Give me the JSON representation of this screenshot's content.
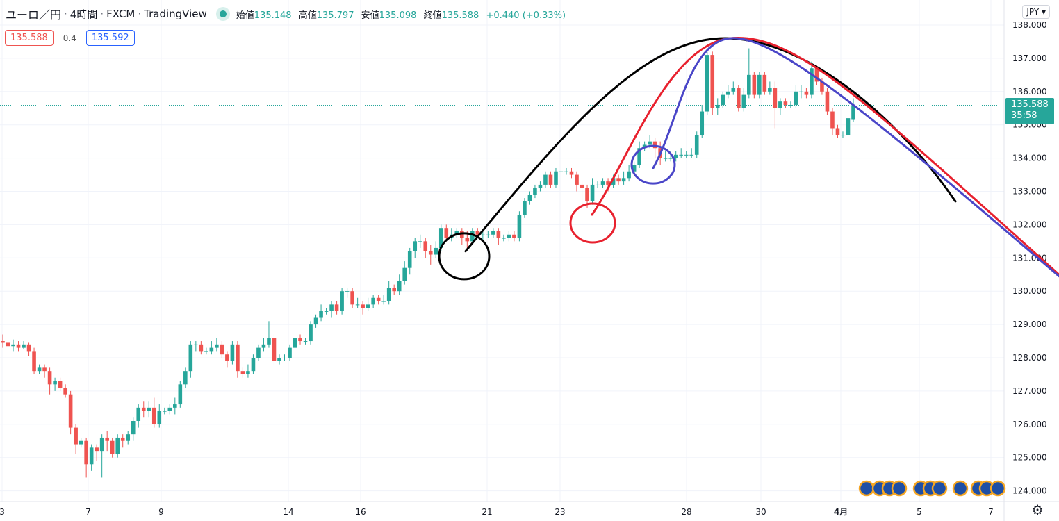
{
  "header": {
    "symbol": "ユーロ／円",
    "interval": "4時間",
    "broker": "FXCM",
    "platform": "TradingView",
    "open_label": "始値",
    "open": "135.148",
    "high_label": "高値",
    "high": "135.797",
    "low_label": "安値",
    "low": "135.098",
    "close_label": "終値",
    "close": "135.588",
    "change": "+0.440 (+0.33%)"
  },
  "quote": {
    "bid": "135.588",
    "spread": "0.4",
    "ask": "135.592"
  },
  "currency_button": "JPY ▾",
  "price_tag": {
    "price": "135.588",
    "countdown": "35:58"
  },
  "settings_icon": "gear-icon",
  "colors": {
    "up": "#26a69a",
    "down": "#ef5350",
    "black": "#000000",
    "red": "#e8212e",
    "blue": "#4a46c8"
  },
  "chart_data": {
    "type": "candlestick",
    "title": "ユーロ／円 · 4時間 · FXCM",
    "ylim": [
      124.0,
      138.0
    ],
    "y_ticks": [
      "124.000",
      "125.000",
      "126.000",
      "127.000",
      "128.000",
      "129.000",
      "130.000",
      "131.000",
      "132.000",
      "133.000",
      "134.000",
      "135.000",
      "136.000",
      "137.000",
      "138.000"
    ],
    "x_ticks": [
      "3",
      "7",
      "9",
      "14",
      "16",
      "21",
      "23",
      "28",
      "30",
      "4月",
      "5",
      "7"
    ],
    "grid": true,
    "last_price": 135.588,
    "candles": [
      [
        128.5,
        128.45,
        128.7,
        128.3
      ],
      [
        128.45,
        128.35,
        128.6,
        128.25
      ],
      [
        128.35,
        128.4,
        128.55,
        128.2
      ],
      [
        128.4,
        128.3,
        128.5,
        128.2
      ],
      [
        128.3,
        128.4,
        128.5,
        128.25
      ],
      [
        128.4,
        128.2,
        128.45,
        128.05
      ],
      [
        128.2,
        127.6,
        128.3,
        127.5
      ],
      [
        127.6,
        127.7,
        127.8,
        127.5
      ],
      [
        127.7,
        127.6,
        127.8,
        127.4
      ],
      [
        127.6,
        127.2,
        127.7,
        126.9
      ],
      [
        127.2,
        127.3,
        127.4,
        127.0
      ],
      [
        127.3,
        127.1,
        127.4,
        127.0
      ],
      [
        127.1,
        126.9,
        127.2,
        126.8
      ],
      [
        126.9,
        125.9,
        127.0,
        125.7
      ],
      [
        125.9,
        125.4,
        126.0,
        125.1
      ],
      [
        125.4,
        125.5,
        125.6,
        125.3
      ],
      [
        125.5,
        124.8,
        125.6,
        124.4
      ],
      [
        124.8,
        125.3,
        125.4,
        124.6
      ],
      [
        125.3,
        125.2,
        125.4,
        124.9
      ],
      [
        125.2,
        125.6,
        125.7,
        124.4
      ],
      [
        125.6,
        125.5,
        125.8,
        125.2
      ],
      [
        125.5,
        125.1,
        125.6,
        125.0
      ],
      [
        125.1,
        125.6,
        125.7,
        125.0
      ],
      [
        125.6,
        125.5,
        125.7,
        125.3
      ],
      [
        125.5,
        125.7,
        125.8,
        125.4
      ],
      [
        125.7,
        126.1,
        126.2,
        125.5
      ],
      [
        126.1,
        126.5,
        126.6,
        125.9
      ],
      [
        126.5,
        126.4,
        126.7,
        126.2
      ],
      [
        126.4,
        126.5,
        126.7,
        126.2
      ],
      [
        126.5,
        126.0,
        126.8,
        125.9
      ],
      [
        126.0,
        126.4,
        126.6,
        125.9
      ],
      [
        126.4,
        126.4,
        126.5,
        126.3
      ],
      [
        126.4,
        126.5,
        126.6,
        126.3
      ],
      [
        126.5,
        126.6,
        126.8,
        126.3
      ],
      [
        126.6,
        127.2,
        127.3,
        126.5
      ],
      [
        127.2,
        127.6,
        127.7,
        127.1
      ],
      [
        127.6,
        128.4,
        128.5,
        127.4
      ],
      [
        128.4,
        128.4,
        128.5,
        128.2
      ],
      [
        128.4,
        128.2,
        128.5,
        128.1
      ],
      [
        128.2,
        128.2,
        128.3,
        128.1
      ],
      [
        128.2,
        128.3,
        128.5,
        128.1
      ],
      [
        128.3,
        128.4,
        128.6,
        128.2
      ],
      [
        128.4,
        128.1,
        128.5,
        128.0
      ],
      [
        128.1,
        127.9,
        128.2,
        127.7
      ],
      [
        127.9,
        128.4,
        128.5,
        127.8
      ],
      [
        128.4,
        127.6,
        128.5,
        127.4
      ],
      [
        127.6,
        127.5,
        127.7,
        127.4
      ],
      [
        127.5,
        127.6,
        127.8,
        127.4
      ],
      [
        127.6,
        128.0,
        128.1,
        127.5
      ],
      [
        128.0,
        128.3,
        128.4,
        127.9
      ],
      [
        128.3,
        128.4,
        128.6,
        128.2
      ],
      [
        128.4,
        128.6,
        129.1,
        128.3
      ],
      [
        128.6,
        127.9,
        128.7,
        127.8
      ],
      [
        127.9,
        128.0,
        128.1,
        127.8
      ],
      [
        128.0,
        128.0,
        128.1,
        127.9
      ],
      [
        128.0,
        128.3,
        128.4,
        127.9
      ],
      [
        128.3,
        128.6,
        128.7,
        128.2
      ],
      [
        128.6,
        128.5,
        128.7,
        128.4
      ],
      [
        128.5,
        128.5,
        128.6,
        128.4
      ],
      [
        128.5,
        129.0,
        129.1,
        128.4
      ],
      [
        129.0,
        129.2,
        129.3,
        128.9
      ],
      [
        129.2,
        129.4,
        129.6,
        129.1
      ],
      [
        129.4,
        129.4,
        129.5,
        129.3
      ],
      [
        129.4,
        129.6,
        129.7,
        129.2
      ],
      [
        129.6,
        129.4,
        129.7,
        129.3
      ],
      [
        129.4,
        130.0,
        130.1,
        129.3
      ],
      [
        130.0,
        130.0,
        130.1,
        129.8
      ],
      [
        130.0,
        129.6,
        130.1,
        129.5
      ],
      [
        129.6,
        129.6,
        129.8,
        129.5
      ],
      [
        129.6,
        129.5,
        129.7,
        129.3
      ],
      [
        129.5,
        129.6,
        129.8,
        129.4
      ],
      [
        129.6,
        129.8,
        129.9,
        129.5
      ],
      [
        129.8,
        129.7,
        129.9,
        129.6
      ],
      [
        129.7,
        129.7,
        129.9,
        129.6
      ],
      [
        129.7,
        130.1,
        130.3,
        129.6
      ],
      [
        130.1,
        130.0,
        130.2,
        129.9
      ],
      [
        130.0,
        130.3,
        130.5,
        129.9
      ],
      [
        130.3,
        130.7,
        130.9,
        130.2
      ],
      [
        130.7,
        131.2,
        131.3,
        130.5
      ],
      [
        131.2,
        131.5,
        131.6,
        131.0
      ],
      [
        131.5,
        131.5,
        131.7,
        131.3
      ],
      [
        131.5,
        131.2,
        131.6,
        131.0
      ],
      [
        131.2,
        131.1,
        131.4,
        130.8
      ],
      [
        131.1,
        131.3,
        131.5,
        131.0
      ],
      [
        131.3,
        131.9,
        132.0,
        131.2
      ],
      [
        131.9,
        131.6,
        132.0,
        131.5
      ],
      [
        131.6,
        131.7,
        131.9,
        131.5
      ],
      [
        131.7,
        131.8,
        131.9,
        131.6
      ],
      [
        131.8,
        131.6,
        131.9,
        131.4
      ],
      [
        131.6,
        131.5,
        131.8,
        131.3
      ],
      [
        131.5,
        131.8,
        131.9,
        131.4
      ],
      [
        131.8,
        131.7,
        131.9,
        131.6
      ],
      [
        131.7,
        131.7,
        131.8,
        131.5
      ],
      [
        131.7,
        131.7,
        131.8,
        131.6
      ],
      [
        131.7,
        131.8,
        131.9,
        131.6
      ],
      [
        131.8,
        131.6,
        131.9,
        131.4
      ],
      [
        131.6,
        131.6,
        131.7,
        131.5
      ],
      [
        131.6,
        131.7,
        131.8,
        131.5
      ],
      [
        131.7,
        131.6,
        131.8,
        131.5
      ],
      [
        131.6,
        132.3,
        132.4,
        131.5
      ],
      [
        132.3,
        132.7,
        132.8,
        132.2
      ],
      [
        132.7,
        132.9,
        133.0,
        132.6
      ],
      [
        132.9,
        133.1,
        133.2,
        132.8
      ],
      [
        133.1,
        133.2,
        133.3,
        133.0
      ],
      [
        133.2,
        133.5,
        133.6,
        133.1
      ],
      [
        133.5,
        133.2,
        133.6,
        133.1
      ],
      [
        133.2,
        133.6,
        133.7,
        133.1
      ],
      [
        133.6,
        133.6,
        134.0,
        133.5
      ],
      [
        133.6,
        133.6,
        133.7,
        133.5
      ],
      [
        133.6,
        133.5,
        133.7,
        133.4
      ],
      [
        133.5,
        133.2,
        133.6,
        133.0
      ],
      [
        133.2,
        133.1,
        133.3,
        132.5
      ],
      [
        133.1,
        132.7,
        133.2,
        132.5
      ],
      [
        132.7,
        133.2,
        133.4,
        132.6
      ],
      [
        133.2,
        133.2,
        133.3,
        133.1
      ],
      [
        133.2,
        133.3,
        133.4,
        133.1
      ],
      [
        133.3,
        133.2,
        133.4,
        133.0
      ],
      [
        133.2,
        133.4,
        133.5,
        133.1
      ],
      [
        133.4,
        133.3,
        133.5,
        133.2
      ],
      [
        133.3,
        133.4,
        133.6,
        133.2
      ],
      [
        133.4,
        133.6,
        133.8,
        133.3
      ],
      [
        133.6,
        133.8,
        133.9,
        133.5
      ],
      [
        133.8,
        134.3,
        134.5,
        133.7
      ],
      [
        134.3,
        134.4,
        134.5,
        134.2
      ],
      [
        134.4,
        134.5,
        134.7,
        134.3
      ],
      [
        134.5,
        134.3,
        134.6,
        134.0
      ],
      [
        134.3,
        134.0,
        134.5,
        133.8
      ],
      [
        134.0,
        134.0,
        134.2,
        133.9
      ],
      [
        134.0,
        134.0,
        134.2,
        133.9
      ],
      [
        134.0,
        134.1,
        134.2,
        133.9
      ],
      [
        134.1,
        134.1,
        134.3,
        134.0
      ],
      [
        134.1,
        134.1,
        134.2,
        134.0
      ],
      [
        134.1,
        134.1,
        134.3,
        134.0
      ],
      [
        134.1,
        134.7,
        134.8,
        134.0
      ],
      [
        134.7,
        135.4,
        135.6,
        134.6
      ],
      [
        135.4,
        137.1,
        137.2,
        135.3
      ],
      [
        137.1,
        135.5,
        137.2,
        135.3
      ],
      [
        135.5,
        135.6,
        135.8,
        135.3
      ],
      [
        135.6,
        135.9,
        136.0,
        135.5
      ],
      [
        135.9,
        136.0,
        136.2,
        135.8
      ],
      [
        136.0,
        136.1,
        136.3,
        135.9
      ],
      [
        136.1,
        135.5,
        136.2,
        135.4
      ],
      [
        135.5,
        135.9,
        136.1,
        135.4
      ],
      [
        135.9,
        136.5,
        137.3,
        135.8
      ],
      [
        136.5,
        135.9,
        136.6,
        135.8
      ],
      [
        135.9,
        136.5,
        136.6,
        135.8
      ],
      [
        136.5,
        136.0,
        136.6,
        135.9
      ],
      [
        136.0,
        136.1,
        136.3,
        135.9
      ],
      [
        136.1,
        135.5,
        136.3,
        134.9
      ],
      [
        135.5,
        135.7,
        135.8,
        135.3
      ],
      [
        135.7,
        135.6,
        135.8,
        135.5
      ],
      [
        135.6,
        135.6,
        135.7,
        135.5
      ],
      [
        135.6,
        136.0,
        136.2,
        135.5
      ],
      [
        136.0,
        136.0,
        136.2,
        135.8
      ],
      [
        136.0,
        135.9,
        136.1,
        135.8
      ],
      [
        135.9,
        136.7,
        136.9,
        135.8
      ],
      [
        136.7,
        136.3,
        136.8,
        136.2
      ],
      [
        136.3,
        136.0,
        136.4,
        135.9
      ],
      [
        136.0,
        135.4,
        136.1,
        135.3
      ],
      [
        135.4,
        134.9,
        135.5,
        134.7
      ],
      [
        134.9,
        134.7,
        135.0,
        134.6
      ],
      [
        134.7,
        134.7,
        134.8,
        134.6
      ],
      [
        134.7,
        135.2,
        135.3,
        134.6
      ],
      [
        135.15,
        135.59,
        135.797,
        135.098
      ]
    ],
    "drawings": [
      {
        "type": "circle",
        "color": "black",
        "center_price": 131.05,
        "radius_price": 0.7
      },
      {
        "type": "circle",
        "color": "red",
        "center_price": 132.05,
        "radius_price": 0.55
      },
      {
        "type": "circle",
        "color": "blue",
        "center_price": 133.8,
        "radius_price": 0.52
      },
      {
        "type": "curve",
        "color": "black",
        "points": [
          [
            131.2,
            "start"
          ],
          [
            137.6,
            "peak"
          ],
          [
            132.7,
            "end"
          ]
        ]
      },
      {
        "type": "curve",
        "color": "red",
        "points": [
          [
            132.3,
            "start"
          ],
          [
            137.6,
            "peak"
          ],
          [
            130.5,
            "end"
          ]
        ]
      },
      {
        "type": "curve",
        "color": "blue",
        "points": [
          [
            133.7,
            "start"
          ],
          [
            137.6,
            "peak"
          ],
          [
            130.5,
            "end"
          ]
        ]
      }
    ]
  }
}
